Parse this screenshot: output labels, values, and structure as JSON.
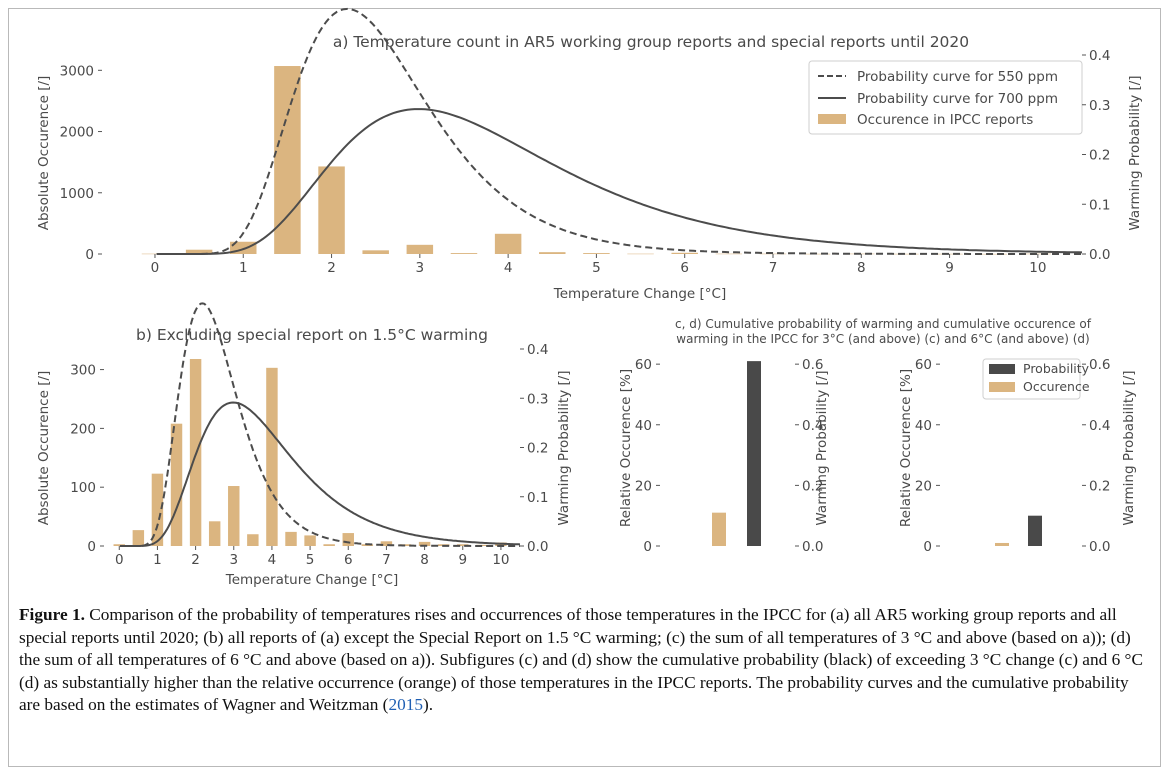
{
  "chart_data": [
    {
      "id": "a",
      "type": "bar",
      "title": "a) Temperature count in AR5 working group reports and special reports until 2020",
      "xlabel": "Temperature Change [°C]",
      "ylabel": "Absolute Occurence [/]",
      "y2label": "Warming Probability [/]",
      "xlim": [
        -0.6,
        10.5
      ],
      "ylim": [
        0,
        3250
      ],
      "y2lim": [
        0,
        0.4
      ],
      "xticks": [
        0,
        1,
        2,
        3,
        4,
        5,
        6,
        7,
        8,
        9,
        10
      ],
      "yticks": [
        0,
        1000,
        2000,
        3000
      ],
      "y2ticks": [
        0.0,
        0.1,
        0.2,
        0.3,
        0.4
      ],
      "legend_position": "top-right",
      "grid": false,
      "legend": [
        "Probability curve for 550 ppm",
        "Probability curve for 700 ppm",
        "Occurence in IPCC reports"
      ],
      "bars": {
        "x": [
          0,
          0.5,
          1,
          1.5,
          2,
          2.5,
          3,
          3.5,
          4,
          4.5,
          5,
          5.5,
          6,
          6.5,
          7,
          7.5,
          8,
          8.5,
          9,
          9.5,
          10
        ],
        "values": [
          5,
          70,
          200,
          3070,
          1430,
          60,
          150,
          15,
          330,
          30,
          15,
          5,
          20,
          5,
          5,
          3,
          5,
          3,
          3,
          2,
          5
        ]
      },
      "series": [
        {
          "name": "Probability curve for 550 ppm",
          "style": "dashed",
          "mu": 0.9,
          "sigma": 0.35
        },
        {
          "name": "Probability curve for 700 ppm",
          "style": "solid",
          "mu": 1.27,
          "sigma": 0.42
        }
      ]
    },
    {
      "id": "b",
      "type": "bar",
      "title": "b) Excluding special report on 1.5°C warming",
      "xlabel": "Temperature Change [°C]",
      "ylabel": "Absolute Occurence [/]",
      "y2label": "Warming Probability [/]",
      "xlim": [
        -0.4,
        10.5
      ],
      "ylim": [
        0,
        335
      ],
      "y2lim": [
        0,
        0.4
      ],
      "xticks": [
        0,
        1,
        2,
        3,
        4,
        5,
        6,
        7,
        8,
        9,
        10
      ],
      "yticks": [
        0,
        100,
        200,
        300
      ],
      "y2ticks": [
        0.0,
        0.1,
        0.2,
        0.3,
        0.4
      ],
      "grid": false,
      "bars": {
        "x": [
          0,
          0.5,
          1,
          1.5,
          2,
          2.5,
          3,
          3.5,
          4,
          4.5,
          5,
          5.5,
          6,
          6.5,
          7,
          7.5,
          8,
          8.5,
          9,
          9.5,
          10
        ],
        "values": [
          3,
          27,
          123,
          208,
          318,
          42,
          102,
          20,
          303,
          24,
          18,
          3,
          22,
          3,
          8,
          3,
          7,
          3,
          3,
          2,
          6
        ]
      },
      "series": [
        {
          "name": "Probability curve for 550 ppm",
          "style": "dashed",
          "mu": 0.9,
          "sigma": 0.35
        },
        {
          "name": "Probability curve for 700 ppm",
          "style": "solid",
          "mu": 1.27,
          "sigma": 0.42
        }
      ]
    },
    {
      "id": "c",
      "type": "bar",
      "title_lines": [
        "c, d) Cumulative probability of warming and cumulative occurence of",
        "warming in the IPCC for 3°C (and above) (c) and 6°C (and above) (d)"
      ],
      "ylabel": "Relative Occurence [%]",
      "y2label": "Warming Probability [/]",
      "ylim": [
        0,
        65
      ],
      "y2lim": [
        0,
        0.65
      ],
      "yticks": [
        0,
        20,
        40,
        60
      ],
      "y2ticks": [
        0.0,
        0.2,
        0.4,
        0.6
      ],
      "occurence_percent": 11,
      "probability": 0.61
    },
    {
      "id": "d",
      "type": "bar",
      "ylabel": "Relative Occurence [%]",
      "y2label": "Warming Probability [/]",
      "ylim": [
        0,
        65
      ],
      "y2lim": [
        0,
        0.65
      ],
      "yticks": [
        0,
        20,
        40,
        60
      ],
      "y2ticks": [
        0.0,
        0.2,
        0.4,
        0.6
      ],
      "legend_position": "top-right",
      "legend": [
        "Probability",
        "Occurence"
      ],
      "occurence_percent": 1,
      "probability": 0.1
    }
  ],
  "colors": {
    "bar": "#dbb580",
    "probability_bar": "#494949",
    "curve": "#4c4c4c",
    "frame": "#b9b9b9"
  },
  "caption": {
    "label": "Figure 1.",
    "text": " Comparison of the probability of temperatures rises and occurrences of those temperatures in the IPCC for (a) all AR5 working group reports and all special reports until 2020; (b) all reports of (a) except the Special Report on 1.5 °C warming; (c) the sum of all temperatures of 3 °C and above (based on a)); (d) the sum of all temperatures of 6 °C and above (based on a)). Subfigures (c) and (d) show the cumulative probability (black) of exceeding 3 °C change (c) and 6 °C (d) as substantially higher than the relative occurrence (orange) of those temperatures in the IPCC reports. The probability curves and the cumulative probability are based on the estimates of Wagner and Weitzman (",
    "link": "2015",
    "end": ")."
  }
}
